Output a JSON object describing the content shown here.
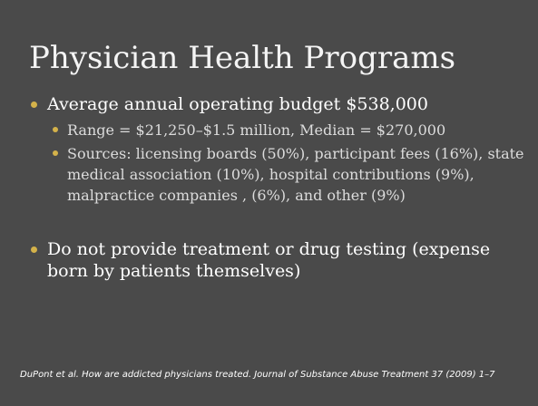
{
  "slide": {
    "title": "Physician Health Programs",
    "bullets": [
      {
        "text": "Average annual operating budget $538,000",
        "sub": [
          "Range = $21,250–$1.5 million, Median = $270,000",
          "Sources: licensing boards (50%), participant fees (16%), state medical association (10%), hospital contributions (9%), malpractice companies , (6%), and other (9%)"
        ]
      },
      {
        "text": "Do not provide treatment or drug testing (expense born by patients themselves)",
        "sub": []
      }
    ],
    "citation": "DuPont et al.  How are addicted physicians treated.  Journal of Substance Abuse Treatment 37 (2009) 1–7"
  },
  "colors": {
    "background": "#4a4a4a",
    "bullet": "#d4b24a",
    "text": "#ffffff",
    "subtext": "#dcdcdc"
  }
}
